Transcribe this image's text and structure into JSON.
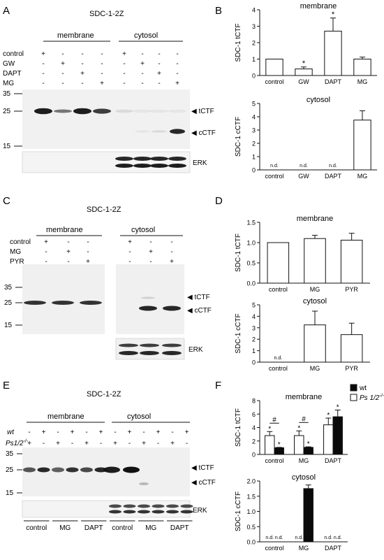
{
  "figure": {
    "panel_letters": [
      "A",
      "B",
      "C",
      "D",
      "E",
      "F"
    ],
    "colors": {
      "ink": "#111111",
      "bar_open": "#ffffff",
      "bar_filled": "#0a0a0a",
      "blot_bg": "#efefef",
      "band": "#1a1a1a"
    },
    "blot_a": {
      "title": "SDC-1-2Z",
      "group_labels": [
        "membrane",
        "cytosol"
      ],
      "row_labels": [
        "control",
        "GW",
        "DAPT",
        "MG"
      ],
      "matrix": [
        [
          "+",
          "-",
          "-",
          "-",
          "+",
          "-",
          "-",
          "-"
        ],
        [
          "-",
          "+",
          "-",
          "-",
          "-",
          "+",
          "-",
          "-"
        ],
        [
          "-",
          "-",
          "+",
          "-",
          "-",
          "-",
          "+",
          "-"
        ],
        [
          "-",
          "-",
          "-",
          "+",
          "-",
          "-",
          "-",
          "+"
        ]
      ],
      "markers": [
        "35",
        "25",
        "15"
      ],
      "band_labels": [
        "tCTF",
        "cCTF"
      ],
      "loading_label": "ERK",
      "tctf_intensity": [
        0.95,
        0.55,
        0.95,
        0.8,
        0.1,
        0.05,
        0.05,
        0.05
      ],
      "cctf_intensity": [
        0,
        0,
        0,
        0,
        0,
        0.05,
        0.1,
        0.9
      ]
    },
    "blot_c": {
      "title": "SDC-1-2Z",
      "group_labels": [
        "membrane",
        "cytosol"
      ],
      "row_labels": [
        "control",
        "MG",
        "PYR"
      ],
      "matrix": [
        [
          "+",
          "-",
          "-",
          "+",
          "-",
          "-"
        ],
        [
          "-",
          "+",
          "-",
          "-",
          "+",
          "-"
        ],
        [
          "-",
          "-",
          "+",
          "-",
          "-",
          "+"
        ]
      ],
      "markers": [
        "35",
        "25",
        "15"
      ],
      "band_labels": [
        "tCTF",
        "cCTF"
      ],
      "loading_label": "ERK"
    },
    "blot_e": {
      "title": "SDC-1-2Z",
      "group_labels": [
        "membrane",
        "cytosol"
      ],
      "row_labels": [
        "wt",
        "Ps1/2"
      ],
      "row_label_sup": "-/-",
      "matrix": [
        [
          "-",
          "+",
          "-",
          "+",
          "-",
          "+",
          "-",
          "+",
          "-",
          "+",
          "-",
          "+"
        ],
        [
          "+",
          "-",
          "+",
          "-",
          "+",
          "-",
          "+",
          "-",
          "+",
          "-",
          "+",
          "-"
        ]
      ],
      "markers": [
        "35",
        "25",
        "15"
      ],
      "band_labels": [
        "tCTF",
        "cCTF"
      ],
      "loading_label": "ERK",
      "bottom_labels": [
        "control",
        "MG",
        "DAPT",
        "control",
        "MG",
        "DAPT"
      ]
    }
  },
  "chart_data": [
    {
      "panel": "B",
      "type": "bar",
      "title": "membrane",
      "ylabel": "SDC-1 tCTF",
      "categories": [
        "control",
        "GW",
        "DAPT",
        "MG"
      ],
      "values": [
        1.0,
        0.4,
        2.7,
        1.0
      ],
      "errors": [
        0,
        0.12,
        0.8,
        0.12
      ],
      "ylim": [
        0,
        4
      ],
      "yticks": [
        "0",
        "1",
        "2",
        "3",
        "4"
      ],
      "annotations": [
        "",
        "*",
        "*",
        ""
      ]
    },
    {
      "panel": "B",
      "type": "bar",
      "title": "cytosol",
      "ylabel": "SDC-1 cCTF",
      "categories": [
        "control",
        "GW",
        "DAPT",
        "MG"
      ],
      "values": [
        null,
        null,
        null,
        3.75
      ],
      "errors": [
        0,
        0,
        0,
        0.7
      ],
      "ylim": [
        0,
        5
      ],
      "yticks": [
        "0",
        "1",
        "2",
        "3",
        "4",
        "5"
      ],
      "annotations": [
        "n.d.",
        "n.d.",
        "n.d.",
        ""
      ]
    },
    {
      "panel": "D",
      "type": "bar",
      "title": "membrane",
      "ylabel": "SDC-1 tCTF",
      "categories": [
        "control",
        "MG",
        "PYR"
      ],
      "values": [
        1.0,
        1.1,
        1.06
      ],
      "errors": [
        0,
        0.08,
        0.17
      ],
      "ylim": [
        0,
        1.5
      ],
      "yticks": [
        "0.0",
        "0.5",
        "1.0",
        "1.5"
      ],
      "annotations": [
        "",
        "",
        ""
      ]
    },
    {
      "panel": "D",
      "type": "bar",
      "title": "cytosol",
      "ylabel": "SDC-1 cCTF",
      "categories": [
        "control",
        "MG",
        "PYR"
      ],
      "values": [
        null,
        3.25,
        2.4
      ],
      "errors": [
        0,
        1.2,
        1.0
      ],
      "ylim": [
        0,
        5
      ],
      "yticks": [
        "0",
        "1",
        "2",
        "3",
        "4",
        "5"
      ],
      "annotations": [
        "n.d.",
        "",
        ""
      ]
    },
    {
      "panel": "F",
      "type": "bar",
      "title": "membrane",
      "ylabel": "SDC-1 tCTF",
      "categories": [
        "control",
        "MG",
        "DAPT"
      ],
      "series": [
        {
          "name": "Ps 1/2",
          "sup": "-/-",
          "fill": "#ffffff",
          "values": [
            2.8,
            2.8,
            4.4
          ],
          "errors": [
            0.6,
            0.7,
            1.0
          ]
        },
        {
          "name": "wt",
          "fill": "#0a0a0a",
          "values": [
            1.0,
            1.05,
            5.6
          ],
          "errors": [
            0.05,
            0.08,
            1.0
          ]
        }
      ],
      "ylim": [
        0,
        8
      ],
      "yticks": [
        "0",
        "2",
        "4",
        "6",
        "8"
      ],
      "annotations": [
        "#",
        "#"
      ],
      "star_marks": [
        "*",
        "*",
        "*",
        "*"
      ],
      "legend_position": "top-right"
    },
    {
      "panel": "F",
      "type": "bar",
      "title": "cytosol",
      "ylabel": "SDC-1 cCTF",
      "categories": [
        "control",
        "MG",
        "DAPT"
      ],
      "series": [
        {
          "name": "Ps 1/2",
          "sup": "-/-",
          "fill": "#ffffff",
          "values": [
            null,
            null,
            null
          ],
          "errors": [
            0,
            0,
            0
          ]
        },
        {
          "name": "wt",
          "fill": "#0a0a0a",
          "values": [
            null,
            1.75,
            null
          ],
          "errors": [
            0,
            0.12,
            0
          ]
        }
      ],
      "ylim": [
        0,
        2.0
      ],
      "yticks": [
        "0.0",
        "0.5",
        "1.0",
        "1.5",
        "2.0"
      ],
      "annotations": [
        "n.d.",
        "n.d.",
        "n.d.",
        "n.d.",
        "n.d.",
        "n.d."
      ]
    }
  ]
}
